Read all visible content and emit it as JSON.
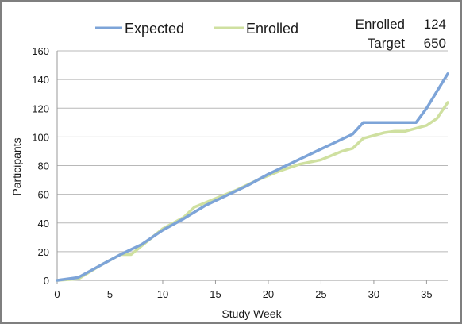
{
  "chart_data": {
    "type": "line",
    "title": "",
    "xlabel": "Study Week",
    "ylabel": "Participants",
    "xlim": [
      0,
      37
    ],
    "ylim": [
      0,
      160
    ],
    "x_ticks": [
      0,
      5,
      10,
      15,
      20,
      25,
      30,
      35
    ],
    "y_ticks": [
      0,
      20,
      40,
      60,
      80,
      100,
      120,
      140,
      160
    ],
    "grid": "horizontal",
    "legend_position": "top-center",
    "series": [
      {
        "name": "Expected",
        "color": "#7da4d8",
        "points": [
          [
            0,
            0
          ],
          [
            2,
            2
          ],
          [
            4,
            10
          ],
          [
            6,
            18
          ],
          [
            8,
            25
          ],
          [
            10,
            35
          ],
          [
            12,
            43
          ],
          [
            14,
            52
          ],
          [
            16,
            59
          ],
          [
            18,
            66
          ],
          [
            20,
            74
          ],
          [
            22,
            81
          ],
          [
            24,
            88
          ],
          [
            26,
            95
          ],
          [
            28,
            102
          ],
          [
            29,
            110
          ],
          [
            30,
            110
          ],
          [
            32,
            110
          ],
          [
            34,
            110
          ],
          [
            35,
            120
          ],
          [
            36,
            132
          ],
          [
            37,
            144
          ]
        ]
      },
      {
        "name": "Enrolled",
        "color": "#cfe0a0",
        "points": [
          [
            0,
            0
          ],
          [
            2,
            1
          ],
          [
            4,
            10
          ],
          [
            6,
            18
          ],
          [
            7,
            18
          ],
          [
            8,
            24
          ],
          [
            10,
            36
          ],
          [
            12,
            44
          ],
          [
            13,
            51
          ],
          [
            15,
            57
          ],
          [
            17,
            63
          ],
          [
            19,
            70
          ],
          [
            21,
            76
          ],
          [
            23,
            81
          ],
          [
            25,
            84
          ],
          [
            27,
            90
          ],
          [
            28,
            92
          ],
          [
            29,
            99
          ],
          [
            31,
            103
          ],
          [
            32,
            104
          ],
          [
            33,
            104
          ],
          [
            35,
            108
          ],
          [
            36,
            113
          ],
          [
            37,
            124
          ]
        ]
      }
    ]
  },
  "stats": {
    "enrolled_label": "Enrolled",
    "enrolled_value": "124",
    "target_label": "Target",
    "target_value": "650"
  }
}
